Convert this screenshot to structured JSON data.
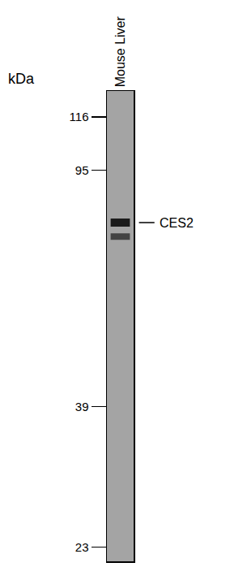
{
  "chart_data": {
    "type": "blot",
    "categories": [
      "Mouse Liver"
    ],
    "y_label": "kDa",
    "bands": [
      78,
      74
    ],
    "annotations": [
      {
        "text": "CES2",
        "y": 78
      }
    ],
    "log": "y",
    "ylim": [
      21.8,
      128
    ],
    "yticks": [
      116,
      95,
      39,
      23
    ],
    "grid": false
  }
}
